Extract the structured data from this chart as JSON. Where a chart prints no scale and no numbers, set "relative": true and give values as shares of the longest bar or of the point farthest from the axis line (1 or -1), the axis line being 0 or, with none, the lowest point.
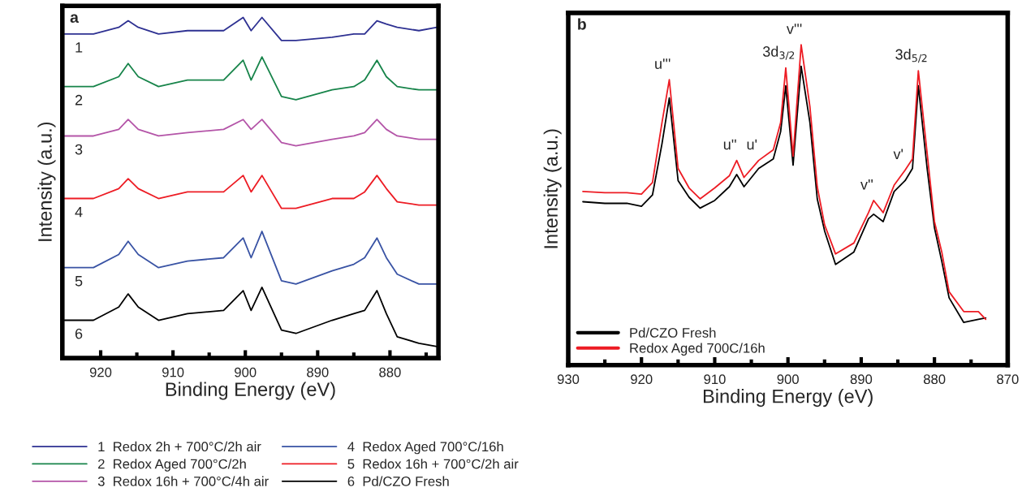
{
  "chart_data": [
    {
      "type": "line",
      "title": "a",
      "xlabel": "Binding Energy (eV)",
      "ylabel": "Intensity (a.u.)",
      "relative": true,
      "grid": false,
      "legend": "bottom",
      "x": [
        925,
        921,
        917.5,
        916.2,
        914.8,
        912,
        908,
        903,
        900.3,
        899.2,
        897.7,
        895,
        893,
        888,
        885,
        883.5,
        881.8,
        880.5,
        879,
        876,
        873.5
      ],
      "xlim": [
        925.3,
        873.3
      ],
      "xticks": [
        920,
        {
          "value": 915,
          "label": null
        },
        910,
        {
          "value": 905,
          "label": null
        },
        900,
        {
          "value": 895,
          "label": null
        },
        890,
        {
          "value": 885,
          "label": null
        },
        880,
        {
          "value": 875,
          "label": null
        }
      ],
      "series": [
        {
          "name": "1  Redox 2h + 700°C/2h air",
          "color": "#2e3192",
          "values": [
            0.95,
            0.95,
            0.97,
            0.99,
            0.97,
            0.95,
            0.96,
            0.96,
            1.0,
            0.96,
            1.0,
            0.93,
            0.93,
            0.94,
            0.95,
            0.95,
            0.99,
            0.98,
            0.97,
            0.96,
            0.97
          ]
        },
        {
          "name": "2  Redox Aged 700°C/2h",
          "color": "#17844a",
          "values": [
            0.79,
            0.79,
            0.82,
            0.86,
            0.82,
            0.79,
            0.81,
            0.81,
            0.87,
            0.81,
            0.88,
            0.76,
            0.75,
            0.78,
            0.79,
            0.81,
            0.87,
            0.82,
            0.79,
            0.78,
            0.78
          ]
        },
        {
          "name": "3  Redox 16h + 700°C/4h air",
          "color": "#b455a8",
          "values": [
            0.64,
            0.64,
            0.66,
            0.69,
            0.66,
            0.64,
            0.65,
            0.66,
            0.69,
            0.66,
            0.69,
            0.62,
            0.61,
            0.63,
            0.64,
            0.65,
            0.69,
            0.66,
            0.64,
            0.63,
            0.63
          ]
        },
        {
          "name": "4  Redox Aged 700°C/16h",
          "color": "#3953a4",
          "values": [
            0.24,
            0.24,
            0.28,
            0.32,
            0.28,
            0.24,
            0.26,
            0.27,
            0.33,
            0.27,
            0.35,
            0.2,
            0.19,
            0.23,
            0.25,
            0.27,
            0.33,
            0.27,
            0.22,
            0.19,
            0.19
          ]
        },
        {
          "name": "5  Redox 16h + 700°C/2h air",
          "color": "#ed1c24",
          "values": [
            0.45,
            0.45,
            0.48,
            0.51,
            0.48,
            0.45,
            0.47,
            0.47,
            0.52,
            0.47,
            0.52,
            0.42,
            0.42,
            0.45,
            0.45,
            0.47,
            0.52,
            0.48,
            0.44,
            0.43,
            0.43
          ]
        },
        {
          "name": "6  Pd/CZO Fresh",
          "color": "#000000",
          "values": [
            0.08,
            0.08,
            0.12,
            0.16,
            0.12,
            0.08,
            0.1,
            0.11,
            0.17,
            0.11,
            0.18,
            0.05,
            0.04,
            0.08,
            0.1,
            0.11,
            0.17,
            0.1,
            0.03,
            0.01,
            0
          ]
        }
      ],
      "annotations": [
        {
          "text": "1",
          "x": 921,
          "y": 0.95
        },
        {
          "text": "2",
          "x": 921,
          "y": 0.79
        },
        {
          "text": "3",
          "x": 921,
          "y": 0.64
        },
        {
          "text": "4",
          "x": 921,
          "y": 0.45
        },
        {
          "text": "5",
          "x": 921,
          "y": 0.24
        },
        {
          "text": "6",
          "x": 921,
          "y": 0.08
        }
      ]
    },
    {
      "type": "line",
      "title": "b",
      "xlabel": "Binding Energy (eV)",
      "ylabel": "Intensity (a.u.)",
      "relative": true,
      "grid": false,
      "legend": "bottom left",
      "x": [
        928,
        925,
        922,
        920,
        918.5,
        917.2,
        916.2,
        915,
        913.5,
        912,
        910,
        908,
        907,
        906,
        904,
        902,
        901,
        900.3,
        899.3,
        898.2,
        897,
        896,
        895,
        893.5,
        891,
        889,
        888.3,
        887,
        885.5,
        884,
        883,
        882.2,
        881,
        880,
        879,
        878,
        876,
        874,
        873
      ],
      "xlim": [
        930,
        870
      ],
      "xticks": [
        930,
        {
          "value": 925,
          "label": null
        },
        920,
        {
          "value": 915,
          "label": null
        },
        910,
        {
          "value": 905,
          "label": null
        },
        900,
        {
          "value": 895,
          "label": null
        },
        890,
        {
          "value": 885,
          "label": null
        },
        880,
        {
          "value": 875,
          "label": null
        },
        870
      ],
      "series": [
        {
          "name": "Pd/CZO Fresh",
          "color": "#000000",
          "values": [
            0.51,
            0.505,
            0.505,
            0.496,
            0.531,
            0.691,
            0.834,
            0.576,
            0.524,
            0.49,
            0.514,
            0.557,
            0.595,
            0.557,
            0.614,
            0.644,
            0.729,
            0.872,
            0.624,
            0.933,
            0.757,
            0.519,
            0.419,
            0.314,
            0.353,
            0.457,
            0.471,
            0.448,
            0.542,
            0.576,
            0.614,
            0.872,
            0.614,
            0.429,
            0.324,
            0.21,
            0.133,
            0.143,
            0.147
          ]
        },
        {
          "name": "Redox Aged 700C/16h",
          "color": "#ed1c24",
          "values": [
            0.542,
            0.538,
            0.538,
            0.534,
            0.57,
            0.757,
            0.891,
            0.614,
            0.553,
            0.519,
            0.553,
            0.591,
            0.639,
            0.586,
            0.639,
            0.672,
            0.757,
            0.928,
            0.652,
            1.0,
            0.806,
            0.557,
            0.438,
            0.347,
            0.381,
            0.476,
            0.514,
            0.476,
            0.562,
            0.609,
            0.644,
            0.919,
            0.662,
            0.448,
            0.353,
            0.229,
            0.167,
            0.167,
            0.143
          ]
        }
      ],
      "annotations": [
        {
          "text": "u'''",
          "x": 916.2,
          "y": 0.891
        },
        {
          "text": "u''",
          "x": 907,
          "y": 0.639
        },
        {
          "text": "u'",
          "x": 904,
          "y": 0.639
        },
        {
          "text": "3d$_{3/2}$",
          "x": 900.3,
          "y": 0.928
        },
        {
          "text": "v'''",
          "x": 898.2,
          "y": 1.0
        },
        {
          "text": "3d$_{5/2}$",
          "x": 882.2,
          "y": 0.919
        },
        {
          "text": "v'",
          "x": 884,
          "y": 0.609
        },
        {
          "text": "v''",
          "x": 888.3,
          "y": 0.514
        }
      ]
    }
  ]
}
